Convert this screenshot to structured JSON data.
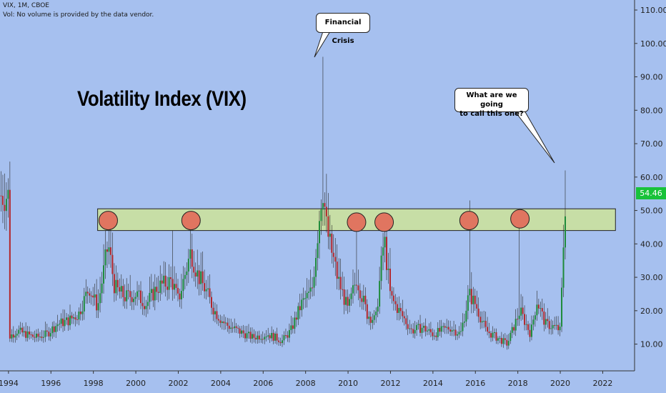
{
  "header": {
    "symbol_line": "VIX, 1M, CBOE",
    "volume_line": "Vol: No volume is provided by the data vendor."
  },
  "chart_title": "Volatility Index (VIX)",
  "annotations": {
    "financial_crisis": "Financial Crisis",
    "question_line1": "What are we going",
    "question_line2": "to call this one?"
  },
  "last_price": "54.46",
  "colors": {
    "background": "#a6c0ef",
    "up_candle": "#1e8a3a",
    "down_candle": "#b3262b",
    "zone_fill": "#c7dea6",
    "circle_fill": "#e07560",
    "price_tag": "#18c23a"
  },
  "chart_data": {
    "type": "candlestick",
    "title": "Volatility Index (VIX)",
    "xlim": [
      1993.6,
      2023.5
    ],
    "ylim": [
      2,
      113
    ],
    "x_tick_labels": [
      "1994",
      "1996",
      "1998",
      "2000",
      "2002",
      "2004",
      "2006",
      "2008",
      "2010",
      "2012",
      "2014",
      "2016",
      "2018",
      "2020",
      "2022"
    ],
    "x_tick_values": [
      1994,
      1996,
      1998,
      2000,
      2002,
      2004,
      2006,
      2008,
      2010,
      2012,
      2014,
      2016,
      2018,
      2020,
      2022
    ],
    "y_tick_labels": [
      "10.00",
      "20.00",
      "30.00",
      "40.00",
      "50.00",
      "60.00",
      "70.00",
      "80.00",
      "90.00",
      "100.00",
      "110.00"
    ],
    "y_tick_values": [
      10,
      20,
      30,
      40,
      50,
      60,
      70,
      80,
      90,
      100,
      110
    ],
    "resistance_zone": {
      "from_year": 1998.2,
      "to_year": 2022.6,
      "low": 44,
      "high": 50.5
    },
    "spike_markers": [
      {
        "year": 1998.7,
        "value": 47
      },
      {
        "year": 2002.6,
        "value": 47
      },
      {
        "year": 2010.4,
        "value": 46.5
      },
      {
        "year": 2011.7,
        "value": 46.5
      },
      {
        "year": 2015.7,
        "value": 47
      },
      {
        "year": 2018.1,
        "value": 47.5
      }
    ],
    "anchors": [
      [
        1994.0,
        12
      ],
      [
        1994.4,
        14
      ],
      [
        1994.8,
        13
      ],
      [
        1995.3,
        12
      ],
      [
        1995.8,
        13
      ],
      [
        1996.3,
        16
      ],
      [
        1996.8,
        17
      ],
      [
        1997.3,
        19
      ],
      [
        1997.8,
        27
      ],
      [
        1998.2,
        21
      ],
      [
        1998.7,
        40
      ],
      [
        1999.0,
        27
      ],
      [
        1999.5,
        24
      ],
      [
        2000.0,
        25
      ],
      [
        2000.5,
        22
      ],
      [
        2001.0,
        27
      ],
      [
        2001.7,
        29
      ],
      [
        2002.0,
        23
      ],
      [
        2002.6,
        38
      ],
      [
        2002.9,
        31
      ],
      [
        2003.3,
        26
      ],
      [
        2003.7,
        20
      ],
      [
        2004.2,
        16
      ],
      [
        2004.8,
        14
      ],
      [
        2005.5,
        12
      ],
      [
        2006.2,
        13
      ],
      [
        2006.9,
        11
      ],
      [
        2007.3,
        14
      ],
      [
        2007.8,
        22
      ],
      [
        2008.3,
        26
      ],
      [
        2008.8,
        58
      ],
      [
        2009.0,
        44
      ],
      [
        2009.5,
        30
      ],
      [
        2010.0,
        20
      ],
      [
        2010.4,
        30
      ],
      [
        2010.9,
        19
      ],
      [
        2011.3,
        17
      ],
      [
        2011.7,
        42
      ],
      [
        2012.0,
        24
      ],
      [
        2012.5,
        19
      ],
      [
        2013.0,
        14
      ],
      [
        2013.5,
        15
      ],
      [
        2014.0,
        13
      ],
      [
        2014.8,
        15
      ],
      [
        2015.3,
        13
      ],
      [
        2015.7,
        25
      ],
      [
        2016.0,
        22
      ],
      [
        2016.5,
        14
      ],
      [
        2017.0,
        12
      ],
      [
        2017.5,
        10
      ],
      [
        2018.1,
        20
      ],
      [
        2018.6,
        13
      ],
      [
        2018.9,
        23
      ],
      [
        2019.3,
        16
      ],
      [
        2019.8,
        15
      ],
      [
        2020.0,
        14
      ],
      [
        2020.15,
        40
      ],
      [
        2020.25,
        54.46
      ]
    ]
  }
}
